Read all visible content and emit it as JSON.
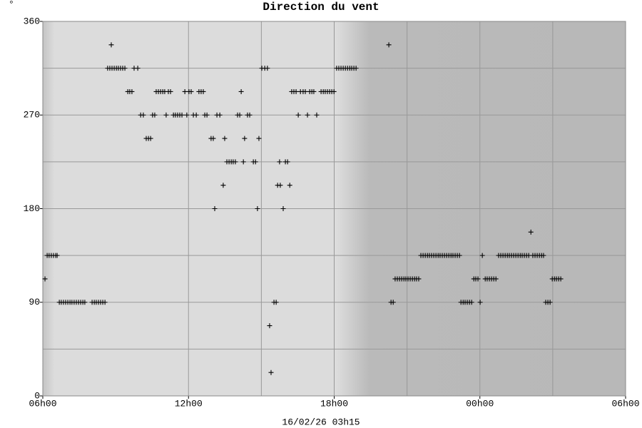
{
  "chart_data": {
    "type": "scatter",
    "title": "Direction du vent",
    "corner_label": "°",
    "subtitle": "16/02/26 03h15",
    "color": "#000000",
    "grid": true,
    "xlim": [
      0,
      24
    ],
    "xticks": [
      {
        "value": 0,
        "label": "06h00"
      },
      {
        "value": 6,
        "label": "12h00"
      },
      {
        "value": 12,
        "label": "18h00"
      },
      {
        "value": 18,
        "label": "00h00"
      },
      {
        "value": 24,
        "label": "06h00"
      }
    ],
    "x_minor_grid": [
      9,
      15,
      21
    ],
    "ylim": [
      0,
      360
    ],
    "yticks": [
      0,
      90,
      180,
      270,
      360
    ],
    "y_minor_grid": [
      45,
      135,
      225,
      315
    ],
    "x": [
      0.09,
      0.18,
      0.26,
      0.35,
      0.44,
      0.53,
      0.59,
      0.68,
      0.76,
      0.85,
      0.94,
      1.03,
      1.12,
      1.2,
      1.29,
      1.38,
      1.47,
      1.56,
      1.65,
      1.73,
      2.03,
      2.12,
      2.2,
      2.29,
      2.38,
      2.47,
      2.56,
      2.67,
      2.76,
      2.85,
      2.94,
      3.03,
      3.11,
      3.2,
      3.29,
      3.38,
      2.82,
      3.5,
      3.58,
      3.67,
      3.76,
      3.91,
      4.03,
      4.14,
      4.26,
      4.35,
      4.44,
      4.52,
      4.61,
      4.67,
      4.76,
      4.85,
      4.94,
      5.02,
      5.08,
      5.17,
      5.26,
      5.38,
      5.46,
      5.55,
      5.64,
      5.73,
      5.85,
      6.02,
      6.11,
      5.93,
      6.2,
      6.32,
      6.43,
      6.52,
      6.61,
      6.67,
      6.76,
      6.93,
      7.02,
      7.08,
      7.17,
      7.29,
      7.43,
      7.49,
      7.58,
      7.67,
      7.76,
      7.84,
      7.93,
      8.02,
      8.11,
      8.17,
      8.26,
      8.31,
      8.43,
      8.52,
      8.67,
      8.76,
      8.84,
      8.9,
      9.02,
      9.14,
      9.25,
      9.34,
      9.4,
      9.52,
      9.61,
      9.67,
      9.78,
      9.75,
      9.9,
      9.99,
      10.08,
      10.17,
      10.25,
      10.34,
      10.43,
      10.52,
      10.61,
      10.72,
      10.81,
      10.9,
      10.99,
      11.08,
      11.16,
      11.28,
      11.46,
      11.55,
      11.63,
      11.72,
      11.81,
      11.9,
      11.99,
      12.1,
      12.19,
      12.28,
      12.37,
      12.46,
      12.55,
      12.64,
      12.72,
      12.81,
      12.9,
      14.25,
      14.34,
      14.43,
      14.51,
      14.6,
      14.69,
      14.78,
      14.87,
      14.95,
      15.04,
      15.13,
      15.22,
      15.31,
      15.39,
      15.48,
      15.57,
      15.66,
      15.75,
      15.84,
      15.92,
      16.01,
      16.1,
      16.19,
      16.28,
      16.36,
      16.45,
      16.54,
      16.63,
      16.72,
      16.81,
      16.89,
      16.98,
      17.07,
      17.16,
      17.22,
      17.31,
      17.39,
      17.48,
      17.57,
      17.66,
      17.75,
      17.83,
      17.92,
      18.01,
      18.1,
      18.22,
      18.3,
      18.39,
      18.48,
      18.57,
      18.66,
      18.77,
      18.86,
      18.95,
      19.04,
      19.13,
      19.21,
      19.3,
      19.39,
      19.48,
      19.57,
      19.66,
      19.74,
      19.83,
      19.92,
      20.01,
      20.1,
      20.18,
      20.27,
      20.36,
      20.45,
      20.54,
      20.62,
      20.71,
      20.8,
      20.89,
      20.98,
      21.07,
      21.15,
      21.24,
      21.33
    ],
    "values": [
      112.5,
      135,
      135,
      135,
      135,
      135,
      135,
      90,
      90,
      90,
      90,
      90,
      90,
      90,
      90,
      90,
      90,
      90,
      90,
      90,
      90,
      90,
      90,
      90,
      90,
      90,
      90,
      315,
      315,
      315,
      315,
      315,
      315,
      315,
      315,
      315,
      337.5,
      292.5,
      292.5,
      292.5,
      315,
      315,
      270,
      270,
      247.5,
      247.5,
      247.5,
      270,
      270,
      292.5,
      292.5,
      292.5,
      292.5,
      292.5,
      270,
      292.5,
      292.5,
      270,
      270,
      270,
      270,
      270,
      292.5,
      292.5,
      292.5,
      270,
      270,
      270,
      292.5,
      292.5,
      292.5,
      270,
      270,
      247.5,
      247.5,
      180,
      270,
      270,
      202.5,
      247.5,
      225,
      225,
      225,
      225,
      225,
      270,
      270,
      292.5,
      225,
      247.5,
      270,
      270,
      225,
      225,
      180,
      247.5,
      315,
      315,
      315,
      67.5,
      22.5,
      90,
      90,
      202.5,
      202.5,
      225,
      180,
      225,
      225,
      202.5,
      292.5,
      292.5,
      292.5,
      270,
      292.5,
      292.5,
      292.5,
      270,
      292.5,
      292.5,
      292.5,
      270,
      292.5,
      292.5,
      292.5,
      292.5,
      292.5,
      292.5,
      292.5,
      315,
      315,
      315,
      315,
      315,
      315,
      315,
      315,
      315,
      315,
      337.5,
      90,
      90,
      112.5,
      112.5,
      112.5,
      112.5,
      112.5,
      112.5,
      112.5,
      112.5,
      112.5,
      112.5,
      112.5,
      112.5,
      135,
      135,
      135,
      135,
      135,
      135,
      135,
      135,
      135,
      135,
      135,
      135,
      135,
      135,
      135,
      135,
      135,
      135,
      135,
      90,
      90,
      90,
      90,
      90,
      90,
      112.5,
      112.5,
      112.5,
      90,
      135,
      112.5,
      112.5,
      112.5,
      112.5,
      112.5,
      112.5,
      135,
      135,
      135,
      135,
      135,
      135,
      135,
      135,
      135,
      135,
      135,
      135,
      135,
      135,
      135,
      157.5,
      135,
      135,
      135,
      135,
      135,
      135,
      90,
      90,
      90,
      112.5,
      112.5,
      112.5,
      112.5,
      112.5
    ]
  }
}
